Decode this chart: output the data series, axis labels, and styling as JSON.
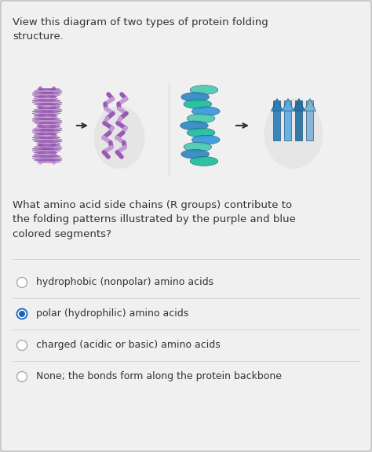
{
  "background_color": "#d8d8d8",
  "card_color": "#f0f0f0",
  "title_text": "View this diagram of two types of protein folding\nstructure.",
  "question_text": "What amino acid side chains (R groups) contribute to\nthe folding patterns illustrated by the purple and blue\ncolored segments?",
  "options": [
    "hydrophobic (nonpolar) amino acids",
    "polar (hydrophilic) amino acids",
    "charged (acidic or basic) amino acids",
    "None; the bonds form along the protein backbone"
  ],
  "selected_option": 1,
  "title_fontsize": 9.5,
  "question_fontsize": 9.5,
  "option_fontsize": 9.0,
  "text_color": "#333333",
  "radio_selected_color": "#1565c0",
  "radio_unselected_color": "#aaaaaa",
  "separator_color": "#cccccc"
}
